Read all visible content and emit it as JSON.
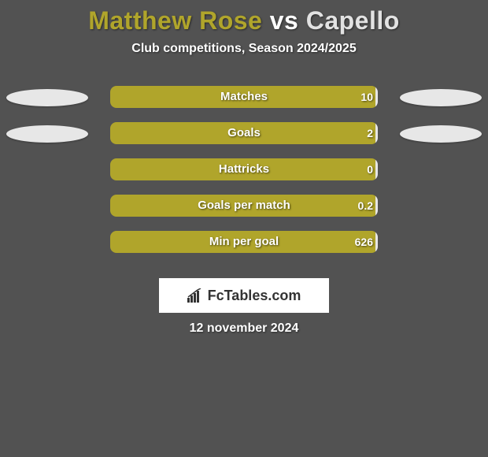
{
  "title": {
    "player1": "Matthew Rose",
    "vs": "vs",
    "player2": "Capello",
    "player1_color": "#b0a52b",
    "vs_color": "#ffffff",
    "player2_color": "#e2e2e2"
  },
  "subtitle": "Club competitions, Season 2024/2025",
  "background_color": "#525252",
  "ellipse_colors": {
    "left": "#e7e7e7",
    "right": "#e7e7e7"
  },
  "bar_segment_colors": {
    "left": "#b0a52b",
    "right": "#e7e7e7"
  },
  "rows": [
    {
      "label": "Matches",
      "left_val": "",
      "right_val": "10",
      "left_pct": 99,
      "right_pct": 1,
      "show_left_ellipse": true,
      "show_right_ellipse": true
    },
    {
      "label": "Goals",
      "left_val": "",
      "right_val": "2",
      "left_pct": 99,
      "right_pct": 1,
      "show_left_ellipse": true,
      "show_right_ellipse": true
    },
    {
      "label": "Hattricks",
      "left_val": "",
      "right_val": "0",
      "left_pct": 99,
      "right_pct": 1,
      "show_left_ellipse": false,
      "show_right_ellipse": false
    },
    {
      "label": "Goals per match",
      "left_val": "",
      "right_val": "0.2",
      "left_pct": 99,
      "right_pct": 1,
      "show_left_ellipse": false,
      "show_right_ellipse": false
    },
    {
      "label": "Min per goal",
      "left_val": "",
      "right_val": "626",
      "left_pct": 99,
      "right_pct": 1,
      "show_left_ellipse": false,
      "show_right_ellipse": false
    }
  ],
  "logo_text": "FcTables.com",
  "date": "12 november 2024"
}
